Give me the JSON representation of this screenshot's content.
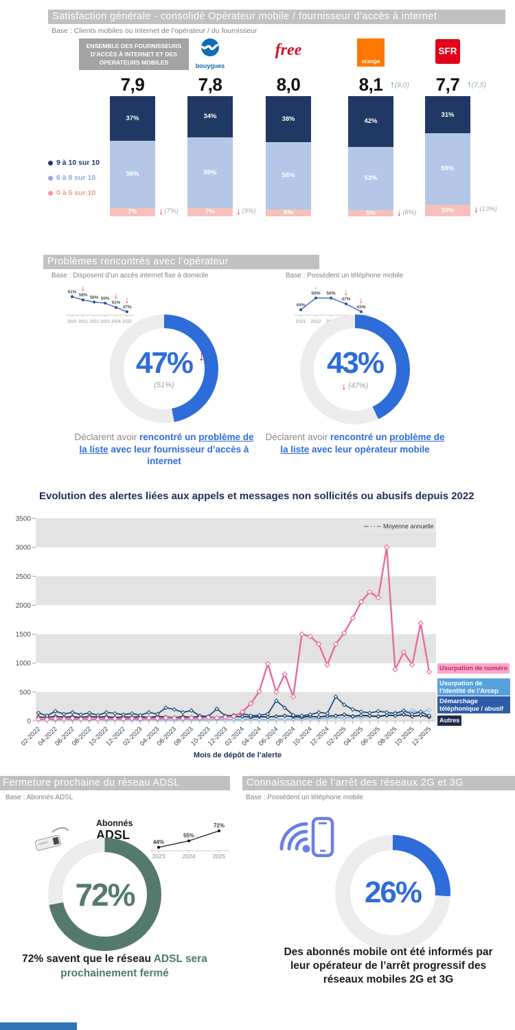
{
  "palette": {
    "up": "#00A651",
    "down": "#E8112D",
    "blue": "#2E6CD9",
    "green": "#547A6D",
    "header_gray": "#C1C1C1"
  },
  "satisfaction": {
    "title": "Satisfaction générale - consolidé Opérateur mobile / fournisseur d’accès à internet",
    "base": "Base : Clients mobiles ou Internet de l’opérateur / du fournisseur",
    "ensemble_lines": [
      "ENSEMBLE DES FOURNISSEURS",
      "D’ACCÈS À INTERNET ET DES",
      "OPERATEURS MOBILES"
    ],
    "colors": {
      "high": "#203864",
      "mid": "#B4C7E7",
      "low": "#F8C0BA"
    },
    "legend": [
      {
        "label": "9 à 10 sur 10",
        "color": "#203864"
      },
      {
        "label": "6 à 8 sur 10",
        "color": "#8FAADC"
      },
      {
        "label": "0 à 5 sur 10",
        "color": "#F09A90"
      }
    ],
    "logos": {
      "bouygues": "bouygues",
      "free": "free",
      "orange": "orange",
      "sfr": "SFR"
    }
  },
  "problems": {
    "title": "Problèmes rencontrés avec l’opérateur",
    "left": {
      "base": "Base : Disposent d’un accès internet fixe à domicile",
      "donut_label": "47%",
      "prev_label": "(51%)",
      "caption": {
        "lead": "Déclarent avoir ",
        "bold": "rencontré un ",
        "underline": "problème de la liste",
        "rest": " avec leur fournisseur d’accès à internet"
      }
    },
    "right": {
      "base": "Base : Possèdent un téléphone mobile",
      "donut_label": "43%",
      "prev_label": "(47%)",
      "caption": {
        "lead": "Déclarent avoir ",
        "bold": "rencontré un ",
        "underline": "problème de la liste",
        "rest": " avec leur opérateur mobile"
      }
    }
  },
  "adsl": {
    "title": "Fermeture prochaine du réseau ADSL",
    "base": "Base : Abonnés ADSL",
    "device_line1": "Abonnés",
    "device_line2": "ADSL",
    "donut_label": "72%",
    "caption": {
      "black": "72% savent que le réseau ",
      "green": "ADSL sera prochainement fermé"
    }
  },
  "shutdown_2g3g": {
    "title": "Connaissance de l’arrêt des réseaux 2G et 3G",
    "base": "Base : Possèdent un téléphone mobile",
    "donut_label": "26%",
    "caption": "Des abonnés mobile ont été informés par leur opérateur de l’arrêt progressif des réseaux mobiles 2G et 3G"
  },
  "chart_data": [
    {
      "id": "satisfaction_by_operator",
      "type": "bar",
      "stacked": true,
      "unit": "%",
      "categories": [
        "Ensemble des fournisseurs d’accès à internet et des opérateurs mobiles",
        "Bouygues Telecom",
        "Free",
        "Orange",
        "SFR"
      ],
      "series": [
        {
          "name": "9 à 10 sur 10",
          "values": [
            37,
            34,
            38,
            42,
            31
          ]
        },
        {
          "name": "6 à 8 sur 10",
          "values": [
            56,
            59,
            56,
            53,
            59
          ]
        },
        {
          "name": "0 à 5 sur 10",
          "values": [
            7,
            7,
            6,
            5,
            10
          ]
        }
      ],
      "scores": [
        "7,9",
        "7,8",
        "8,0",
        "8,1",
        "7,7"
      ],
      "score_vs_previous": [
        null,
        null,
        null,
        {
          "dir": "up",
          "prev": "(8,0)"
        },
        {
          "dir": "up",
          "prev": "(7,5)"
        }
      ],
      "low_vs_previous": [
        {
          "dir": "down",
          "prev": "(7%)"
        },
        {
          "dir": "down",
          "prev": "(9%)"
        },
        null,
        {
          "dir": "down",
          "prev": "(8%)"
        },
        {
          "dir": "down",
          "prev": "(13%)"
        }
      ]
    },
    {
      "id": "problemes_internet_trend",
      "type": "line",
      "unit": "%",
      "x": [
        "2020",
        "2021",
        "2022",
        "2023",
        "2024",
        "2025"
      ],
      "values": [
        61,
        58,
        56,
        55,
        51,
        47
      ],
      "arrows": [
        {
          "x": "2021",
          "dir": "down"
        },
        {
          "x": "2024",
          "dir": "down"
        },
        {
          "x": "2025",
          "dir": "down"
        }
      ]
    },
    {
      "id": "problemes_internet_donut",
      "type": "pie",
      "value": 47,
      "previous": 51,
      "unit": "%",
      "color": "#2E6CD9",
      "track": "#ECECEC"
    },
    {
      "id": "problemes_mobile_trend",
      "type": "line",
      "unit": "%",
      "x": [
        "2021",
        "2022",
        "2023",
        "2024",
        "2025"
      ],
      "values": [
        44,
        50,
        50,
        47,
        43
      ],
      "arrows": [
        {
          "x": "2022",
          "dir": "up"
        },
        {
          "x": "2024",
          "dir": "down"
        },
        {
          "x": "2025",
          "dir": "down"
        }
      ]
    },
    {
      "id": "problemes_mobile_donut",
      "type": "pie",
      "value": 43,
      "previous": 47,
      "unit": "%",
      "color": "#2E6CD9",
      "track": "#ECECEC"
    },
    {
      "id": "alertes_mensuelles",
      "type": "line",
      "title": "Evolution des alertes liées aux appels et messages non sollicités ou abusifs depuis 2022",
      "xlabel": "Mois de dépôt de l’alerte",
      "legend": "Moyenne annuelle",
      "ylim": [
        0,
        3500
      ],
      "ytick_step": 500,
      "x_label_every": 2,
      "x": [
        "02-2022",
        "03-2022",
        "04-2022",
        "05-2022",
        "06-2022",
        "07-2022",
        "08-2022",
        "09-2022",
        "10-2022",
        "11-2022",
        "12-2022",
        "01-2023",
        "02-2023",
        "03-2023",
        "04-2023",
        "05-2023",
        "06-2023",
        "07-2023",
        "08-2023",
        "09-2023",
        "10-2023",
        "11-2023",
        "12-2023",
        "01-2024",
        "02-2024",
        "03-2024",
        "04-2024",
        "05-2024",
        "06-2024",
        "07-2024",
        "08-2024",
        "09-2024",
        "10-2024",
        "11-2024",
        "12-2024",
        "01-2025",
        "02-2025",
        "03-2025",
        "04-2025",
        "05-2025",
        "06-2025",
        "07-2025",
        "08-2025",
        "09-2025",
        "10-2025",
        "11-2025",
        "12-2025"
      ],
      "series": [
        {
          "name": "Usurpation de numéro",
          "color": "#E76A9E",
          "label_bg": "#F9A8C9",
          "label_color": "#C2256B",
          "values": [
            30,
            25,
            40,
            30,
            45,
            35,
            40,
            30,
            45,
            40,
            35,
            45,
            40,
            50,
            45,
            55,
            50,
            45,
            55,
            50,
            60,
            55,
            65,
            80,
            155,
            300,
            510,
            990,
            500,
            810,
            420,
            1500,
            1460,
            1330,
            970,
            1330,
            1520,
            1780,
            2060,
            2230,
            2130,
            3000,
            890,
            1190,
            970,
            1690,
            850
          ]
        },
        {
          "name": "Usurpation de l’identité de l’Arcep",
          "color": "#7EB5E8",
          "label_bg": "#58A1DC",
          "label_color": "#FFFFFF",
          "values": [
            20,
            30,
            15,
            25,
            20,
            30,
            20,
            25,
            15,
            30,
            20,
            25,
            15,
            30,
            20,
            25,
            15,
            30,
            20,
            25,
            15,
            30,
            20,
            25,
            20,
            30,
            25,
            20,
            30,
            25,
            35,
            30,
            40,
            35,
            50,
            60,
            50,
            70,
            60,
            80,
            70,
            90,
            150,
            120,
            180,
            150,
            190
          ]
        },
        {
          "name": "Démarchage téléphonique / abusif",
          "color": "#1F4E79",
          "label_bg": "#2E5CA6",
          "label_color": "#FFFFFF",
          "values": [
            140,
            90,
            170,
            120,
            150,
            110,
            140,
            100,
            150,
            130,
            110,
            130,
            100,
            150,
            120,
            230,
            200,
            150,
            180,
            90,
            80,
            210,
            90,
            100,
            130,
            90,
            100,
            120,
            350,
            230,
            100,
            90,
            110,
            150,
            130,
            420,
            280,
            200,
            160,
            140,
            170,
            150,
            130,
            180,
            120,
            160,
            90
          ]
        },
        {
          "name": "Autres",
          "color": "#1C2B4A",
          "label_bg": "#1C2B4A",
          "label_color": "#FFFFFF",
          "values": [
            70,
            60,
            80,
            65,
            75,
            60,
            80,
            65,
            75,
            60,
            70,
            65,
            75,
            60,
            80,
            70,
            60,
            75,
            65,
            80,
            70,
            60,
            75,
            70,
            80,
            65,
            75,
            70,
            80,
            90,
            75,
            65,
            80,
            70,
            85,
            90,
            110,
            80,
            100,
            90,
            80,
            100,
            90,
            110,
            80,
            100,
            70
          ]
        }
      ]
    },
    {
      "id": "adsl_trend",
      "type": "line",
      "unit": "%",
      "x": [
        "2023",
        "2024",
        "2025"
      ],
      "values": [
        44,
        55,
        72
      ],
      "arrows": []
    },
    {
      "id": "adsl_donut",
      "type": "pie",
      "value": 72,
      "unit": "%",
      "color": "#547A6D",
      "track": "#ECECEC"
    },
    {
      "id": "arret_2g3g_donut",
      "type": "pie",
      "value": 26,
      "unit": "%",
      "color": "#2E6CD9",
      "track": "#ECECEC"
    }
  ]
}
